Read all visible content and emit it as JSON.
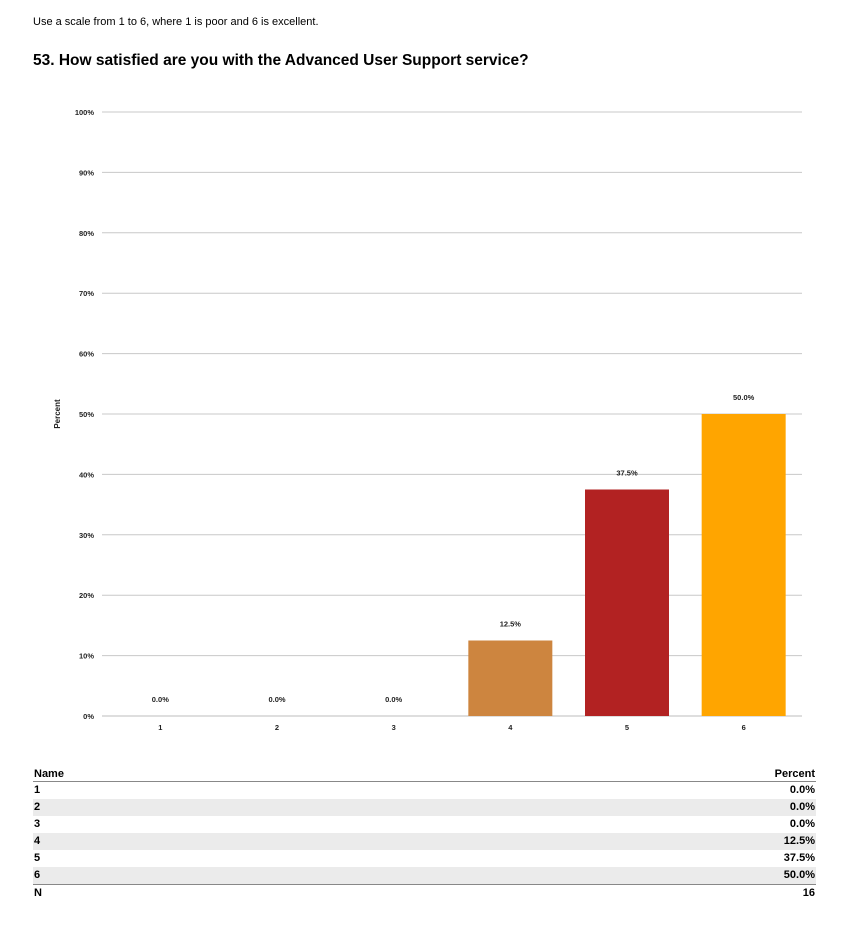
{
  "intro": "Use a scale from 1 to 6, where 1 is poor and 6 is excellent.",
  "question": "53. How satisfied are you with the Advanced User Support service?",
  "chart_data": {
    "type": "bar",
    "categories": [
      "1",
      "2",
      "3",
      "4",
      "5",
      "6"
    ],
    "values": [
      0.0,
      0.0,
      0.0,
      12.5,
      37.5,
      50.0
    ],
    "data_labels": [
      "0.0%",
      "0.0%",
      "0.0%",
      "12.5%",
      "37.5%",
      "50.0%"
    ],
    "colors": [
      "#cd853f",
      "#cd853f",
      "#cd853f",
      "#cd853f",
      "#b22222",
      "#ffa500"
    ],
    "ylabel": "Percent",
    "ylim": [
      0,
      100
    ],
    "yticks": [
      "0%",
      "10%",
      "20%",
      "30%",
      "40%",
      "50%",
      "60%",
      "70%",
      "80%",
      "90%",
      "100%"
    ],
    "grid": true
  },
  "table": {
    "header": {
      "name": "Name",
      "percent": "Percent"
    },
    "rows": [
      {
        "name": "1",
        "percent": "0.0%"
      },
      {
        "name": "2",
        "percent": "0.0%"
      },
      {
        "name": "3",
        "percent": "0.0%"
      },
      {
        "name": "4",
        "percent": "12.5%"
      },
      {
        "name": "5",
        "percent": "37.5%"
      },
      {
        "name": "6",
        "percent": "50.0%"
      }
    ],
    "footer": {
      "name": "N",
      "value": "16"
    }
  }
}
